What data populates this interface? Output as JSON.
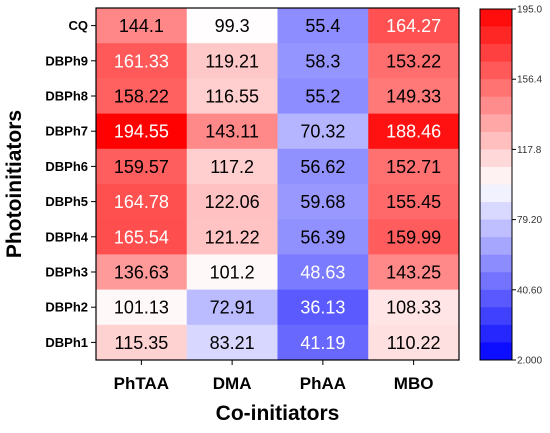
{
  "chart_data": {
    "type": "heatmap",
    "title": "",
    "xlabel": "Co-initiators",
    "ylabel": "Photoinitiators",
    "x_categories": [
      "PhTAA",
      "DMA",
      "PhAA",
      "MBO"
    ],
    "y_categories": [
      "CQ",
      "DBPh9",
      "DBPh8",
      "DBPh7",
      "DBPh6",
      "DBPh5",
      "DBPh4",
      "DBPh3",
      "DBPh2",
      "DBPh1"
    ],
    "values": [
      [
        144.1,
        99.3,
        55.4,
        164.27
      ],
      [
        161.33,
        119.21,
        58.3,
        153.22
      ],
      [
        158.22,
        116.55,
        55.2,
        149.33
      ],
      [
        194.55,
        143.11,
        70.32,
        188.46
      ],
      [
        159.57,
        117.2,
        56.62,
        152.71
      ],
      [
        164.78,
        122.06,
        59.68,
        155.45
      ],
      [
        165.54,
        121.22,
        56.39,
        159.99
      ],
      [
        136.63,
        101.2,
        48.63,
        143.25
      ],
      [
        101.13,
        72.91,
        36.13,
        108.33
      ],
      [
        115.35,
        83.21,
        41.19,
        110.22
      ]
    ],
    "cell_labels": [
      [
        "144.1",
        "99.3",
        "55.4",
        "164.27"
      ],
      [
        "161.33",
        "119.21",
        "58.3",
        "153.22"
      ],
      [
        "158.22",
        "116.55",
        "55.2",
        "149.33"
      ],
      [
        "194.55",
        "143.11",
        "70.32",
        "188.46"
      ],
      [
        "159.57",
        "117.2",
        "56.62",
        "152.71"
      ],
      [
        "164.78",
        "122.06",
        "59.68",
        "155.45"
      ],
      [
        "165.54",
        "121.22",
        "56.39",
        "159.99"
      ],
      [
        "136.63",
        "101.2",
        "48.63",
        "143.25"
      ],
      [
        "101.13",
        "72.91",
        "36.13",
        "108.33"
      ],
      [
        "115.35",
        "83.21",
        "41.19",
        "110.22"
      ]
    ],
    "colorbar": {
      "min": 2.0,
      "max": 195.0,
      "tick_values": [
        195.0,
        156.4,
        117.8,
        79.2,
        40.6,
        2.0
      ],
      "tick_labels": [
        "195.0",
        "156.4",
        "117.8",
        "79.20",
        "40.60",
        "2.000"
      ],
      "colors": {
        "low": "#0000ff",
        "mid": "#ffffff",
        "high": "#ff0000"
      },
      "segments": 20
    },
    "legend_position": "right",
    "grid": false
  }
}
